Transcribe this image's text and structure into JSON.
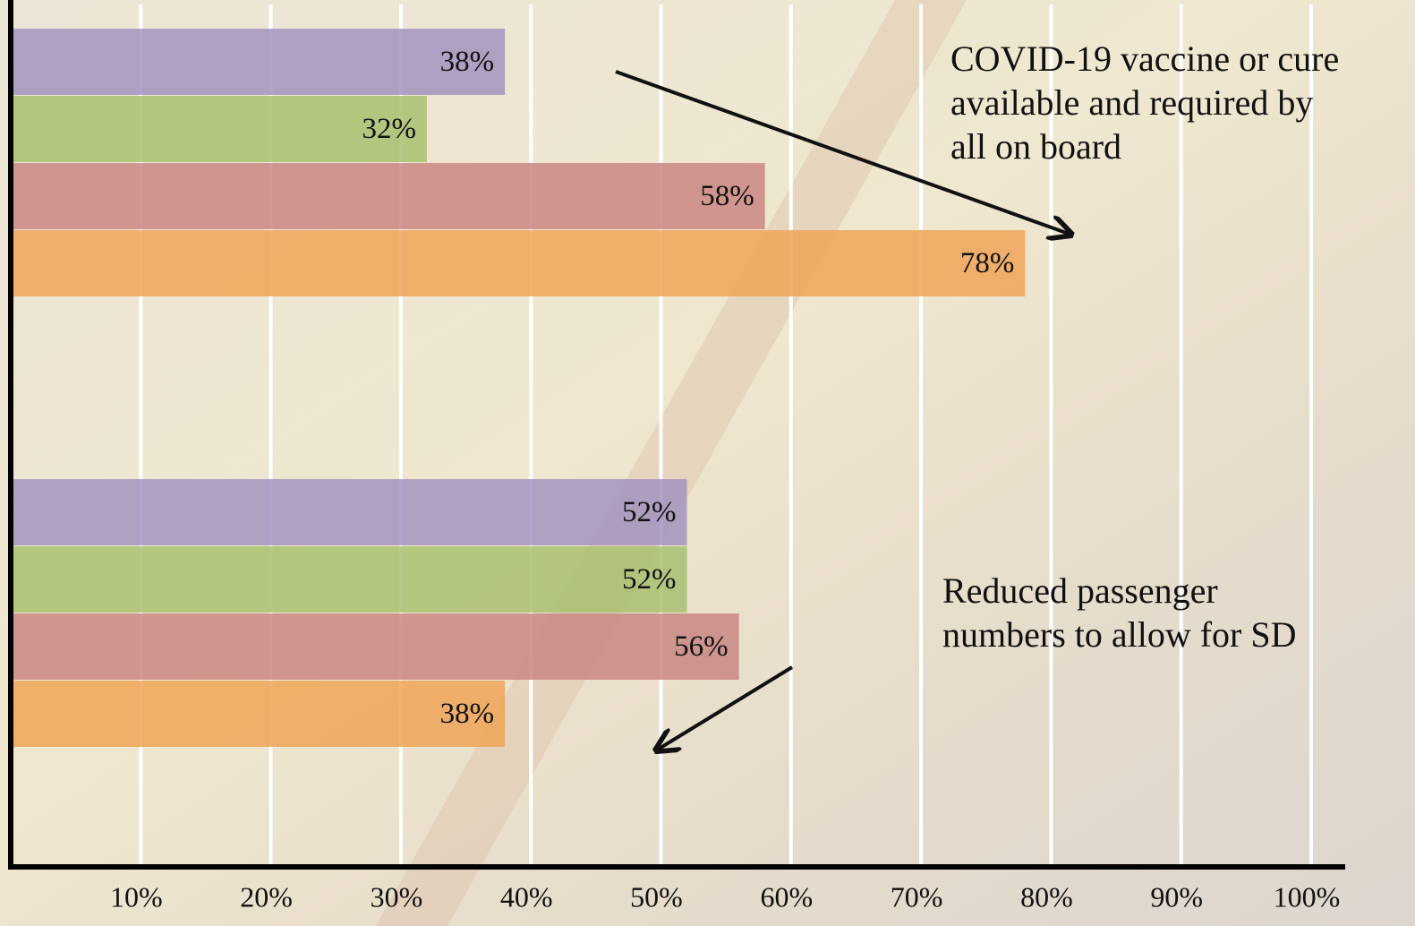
{
  "chart_data": {
    "type": "bar",
    "orientation": "horizontal",
    "categories": [
      null,
      null
    ],
    "series": [
      {
        "color": "#a393c0",
        "values": [
          38,
          52
        ],
        "value_labels": [
          "38%",
          "52%"
        ]
      },
      {
        "color": "#a8bf70",
        "values": [
          32,
          52
        ],
        "value_labels": [
          "32%",
          "52%"
        ]
      },
      {
        "color": "#c98682",
        "values": [
          58,
          56
        ],
        "value_labels": [
          "58%",
          "56%"
        ]
      },
      {
        "color": "#eea557",
        "values": [
          78,
          38
        ],
        "value_labels": [
          "78%",
          "38%"
        ]
      }
    ],
    "xlim": [
      0,
      100
    ],
    "xticks": [
      {
        "value": 10,
        "label": "10%"
      },
      {
        "value": 20,
        "label": "20%"
      },
      {
        "value": 30,
        "label": "30%"
      },
      {
        "value": 40,
        "label": "40%"
      },
      {
        "value": 50,
        "label": "50%"
      },
      {
        "value": 60,
        "label": "60%"
      },
      {
        "value": 70,
        "label": "70%"
      },
      {
        "value": 80,
        "label": "80%"
      },
      {
        "value": 90,
        "label": "90%"
      },
      {
        "value": 100,
        "label": "100%"
      }
    ],
    "grid": true,
    "annotations": [
      {
        "lines": [
          "COVID-19 vaccine or cure",
          "available and required by",
          "all on board"
        ]
      },
      {
        "lines": [
          "Reduced passenger",
          "numbers to allow for SD"
        ]
      }
    ]
  }
}
